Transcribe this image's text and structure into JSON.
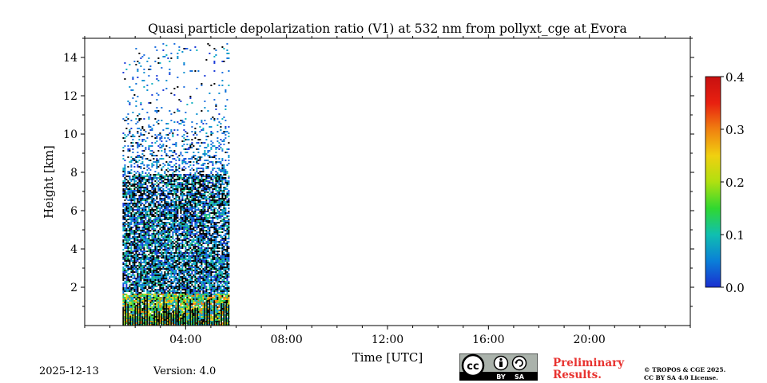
{
  "chart_data": {
    "type": "heatmap",
    "title": "Quasi particle depolarization ratio (V1) at 532 nm from pollyxt_cge at Evora",
    "xlabel": "Time [UTC]",
    "ylabel": "Height [km]",
    "xlim": [
      0,
      24
    ],
    "ylim": [
      0,
      15
    ],
    "x_ticks": [
      {
        "value": 4,
        "label": "04:00"
      },
      {
        "value": 8,
        "label": "08:00"
      },
      {
        "value": 12,
        "label": "12:00"
      },
      {
        "value": 16,
        "label": "16:00"
      },
      {
        "value": 20,
        "label": "20:00"
      }
    ],
    "y_ticks": [
      {
        "value": 2,
        "label": "2"
      },
      {
        "value": 4,
        "label": "4"
      },
      {
        "value": 6,
        "label": "6"
      },
      {
        "value": 8,
        "label": "8"
      },
      {
        "value": 10,
        "label": "10"
      },
      {
        "value": 12,
        "label": "12"
      },
      {
        "value": 14,
        "label": "14"
      }
    ],
    "data_time_range": [
      1.5,
      5.7
    ],
    "colorbar": {
      "range": [
        0.0,
        0.4
      ],
      "ticks": [
        {
          "value": 0.0,
          "label": "0.0"
        },
        {
          "value": 0.1,
          "label": "0.1"
        },
        {
          "value": 0.2,
          "label": "0.2"
        },
        {
          "value": 0.3,
          "label": "0.3"
        },
        {
          "value": 0.4,
          "label": "0.4"
        }
      ],
      "colormap": [
        "#1a2fd0",
        "#0a7fd8",
        "#10bfb0",
        "#30d830",
        "#b0e010",
        "#f0d010",
        "#f08010",
        "#e82010",
        "#c81010"
      ]
    }
  },
  "footer": {
    "date": "2025-12-13",
    "version": "Version: 4.0",
    "preliminary_line1": "Preliminary",
    "preliminary_line2": "Results.",
    "copyright_line1": "© TROPOS & CGE 2025.",
    "copyright_line2": "CC BY SA 4.0 License.",
    "license_badge": {
      "cc": "cc",
      "by": "BY",
      "sa": "SA"
    }
  }
}
